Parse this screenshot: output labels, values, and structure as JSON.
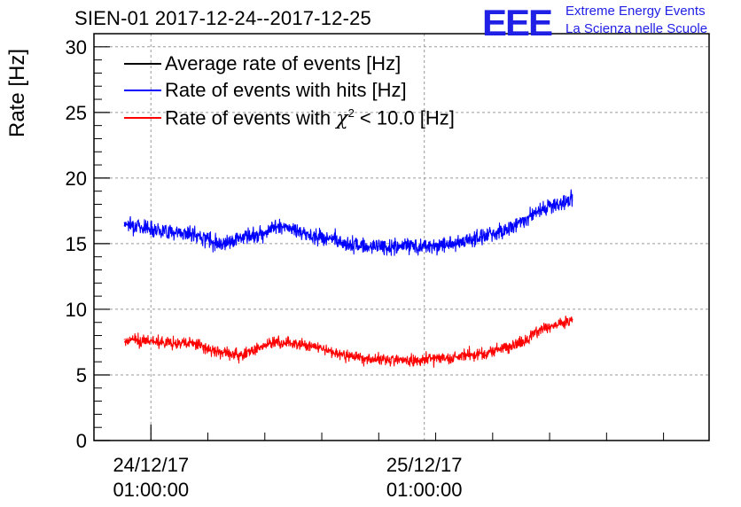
{
  "header": {
    "title": "SIEN-01 2017-12-24--2017-12-25",
    "logo_text": "EEE",
    "logo_line1": "Extreme Energy Events",
    "logo_line2": "La Scienza nelle Scuole"
  },
  "colors": {
    "average": "#000000",
    "hits": "#0000ff",
    "chi2": "#ff0000",
    "logo": "#1f1fe6",
    "grid": "#9a9a9a"
  },
  "legend": {
    "items": [
      {
        "label": "Average rate of events [Hz]"
      },
      {
        "label": "Rate of events with hits [Hz]"
      },
      {
        "label_prefix": "Rate of events with ",
        "chi": "χ",
        "sup": "2",
        "label_suffix": " < 10.0 [Hz]"
      }
    ]
  },
  "chart_data": {
    "type": "line",
    "title": "SIEN-01 2017-12-24--2017-12-25",
    "xlabel": "",
    "ylabel": "Rate [Hz]",
    "ylim": [
      0,
      31
    ],
    "y_ticks": [
      "0",
      "5",
      "10",
      "15",
      "20",
      "25",
      "30"
    ],
    "x_range": [
      "2017-12-23 20:00",
      "2017-12-26 02:00"
    ],
    "x_ticks": [
      {
        "date": "24/12/17",
        "time": "01:00:00",
        "at": "2017-12-24 01:00"
      },
      {
        "date": "25/12/17",
        "time": "01:00:00",
        "at": "2017-12-25 01:00"
      }
    ],
    "grid": true,
    "legend_position": "top-left",
    "series": [
      {
        "name": "Average rate of events [Hz]",
        "color": "#000000",
        "x": [],
        "y": []
      },
      {
        "name": "Rate of events with hits [Hz]",
        "color": "#0000ff",
        "x": [
          "2017-12-23 22:40",
          "2017-12-24 00:00",
          "2017-12-24 01:00",
          "2017-12-24 02:00",
          "2017-12-24 03:00",
          "2017-12-24 04:00",
          "2017-12-24 05:00",
          "2017-12-24 06:00",
          "2017-12-24 07:00",
          "2017-12-24 08:00",
          "2017-12-24 09:00",
          "2017-12-24 10:00",
          "2017-12-24 11:00",
          "2017-12-24 12:00",
          "2017-12-24 13:00",
          "2017-12-24 14:00",
          "2017-12-24 15:00",
          "2017-12-24 16:00",
          "2017-12-24 17:00",
          "2017-12-24 18:00",
          "2017-12-24 19:00",
          "2017-12-24 20:00",
          "2017-12-24 21:00",
          "2017-12-24 22:00",
          "2017-12-24 23:00",
          "2017-12-25 00:00",
          "2017-12-25 01:00",
          "2017-12-25 02:00",
          "2017-12-25 03:00",
          "2017-12-25 04:00",
          "2017-12-25 05:00",
          "2017-12-25 06:00",
          "2017-12-25 07:00",
          "2017-12-25 08:00",
          "2017-12-25 09:00",
          "2017-12-25 10:00",
          "2017-12-25 11:00",
          "2017-12-25 12:00",
          "2017-12-25 13:00",
          "2017-12-25 14:00"
        ],
        "y": [
          16.6,
          16.3,
          16.2,
          16.0,
          15.9,
          15.8,
          15.6,
          15.4,
          15.0,
          15.2,
          15.5,
          15.6,
          15.9,
          16.3,
          16.2,
          15.9,
          15.6,
          15.5,
          15.3,
          15.0,
          14.9,
          14.8,
          14.8,
          14.7,
          14.8,
          14.9,
          14.8,
          14.8,
          15.0,
          15.1,
          15.3,
          15.5,
          15.8,
          16.0,
          16.4,
          17.0,
          17.5,
          17.8,
          18.1,
          18.3
        ]
      },
      {
        "name": "Rate of events with χ2 < 10.0 [Hz]",
        "color": "#ff0000",
        "x": [
          "2017-12-23 22:40",
          "2017-12-24 00:00",
          "2017-12-24 01:00",
          "2017-12-24 02:00",
          "2017-12-24 03:00",
          "2017-12-24 04:00",
          "2017-12-24 05:00",
          "2017-12-24 06:00",
          "2017-12-24 07:00",
          "2017-12-24 08:00",
          "2017-12-24 09:00",
          "2017-12-24 10:00",
          "2017-12-24 11:00",
          "2017-12-24 12:00",
          "2017-12-24 13:00",
          "2017-12-24 14:00",
          "2017-12-24 15:00",
          "2017-12-24 16:00",
          "2017-12-24 17:00",
          "2017-12-24 18:00",
          "2017-12-24 19:00",
          "2017-12-24 20:00",
          "2017-12-24 21:00",
          "2017-12-24 22:00",
          "2017-12-24 23:00",
          "2017-12-25 00:00",
          "2017-12-25 01:00",
          "2017-12-25 02:00",
          "2017-12-25 03:00",
          "2017-12-25 04:00",
          "2017-12-25 05:00",
          "2017-12-25 06:00",
          "2017-12-25 07:00",
          "2017-12-25 08:00",
          "2017-12-25 09:00",
          "2017-12-25 10:00",
          "2017-12-25 11:00",
          "2017-12-25 12:00",
          "2017-12-25 13:00",
          "2017-12-25 14:00"
        ],
        "y": [
          7.7,
          7.6,
          7.6,
          7.5,
          7.4,
          7.4,
          7.3,
          7.0,
          6.7,
          6.6,
          6.5,
          6.9,
          7.3,
          7.5,
          7.4,
          7.3,
          7.2,
          7.0,
          6.7,
          6.5,
          6.4,
          6.3,
          6.2,
          6.2,
          6.1,
          6.1,
          6.2,
          6.3,
          6.3,
          6.4,
          6.5,
          6.6,
          6.8,
          7.0,
          7.3,
          7.7,
          8.4,
          8.7,
          8.9,
          9.2
        ]
      }
    ]
  }
}
